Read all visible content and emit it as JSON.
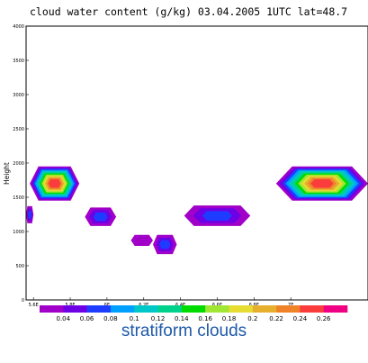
{
  "caption": "stratiform clouds",
  "chart_data": {
    "type": "contour",
    "title": "cloud water content (g/kg) 03.04.2005 1UTC lat=48.7",
    "ylabel": "Height",
    "xlabel": "",
    "xlim": [
      5.56,
      7.42
    ],
    "ylim": [
      0,
      4000
    ],
    "grid": false,
    "yticks": [
      0,
      500,
      1000,
      1500,
      2000,
      2500,
      3000,
      3500,
      4000
    ],
    "xticks": [
      {
        "v": 5.6,
        "l": "5.6E"
      },
      {
        "v": 5.8,
        "l": "5.8E"
      },
      {
        "v": 6.0,
        "l": "6E"
      },
      {
        "v": 6.2,
        "l": "6.2E"
      },
      {
        "v": 6.4,
        "l": "6.4E"
      },
      {
        "v": 6.6,
        "l": "6.6E"
      },
      {
        "v": 6.8,
        "l": "6.8E"
      },
      {
        "v": 7.0,
        "l": "7E"
      }
    ],
    "levels": [
      "0.04",
      "0.06",
      "0.08",
      "0.1",
      "0.12",
      "0.14",
      "0.16",
      "0.18",
      "0.2",
      "0.22",
      "0.24",
      "0.26"
    ],
    "colors": [
      "#a000c8",
      "#6e00e6",
      "#1e3cff",
      "#00a0ff",
      "#00c8c8",
      "#00d28c",
      "#00dc00",
      "#a0e632",
      "#e6dc32",
      "#e6af2d",
      "#f08228",
      "#fa3c3c",
      "#f00082"
    ],
    "cells": [
      {
        "x": [
          5.56,
          5.6
        ],
        "y": [
          1120,
          1370
        ],
        "max": "0.08"
      },
      {
        "x": [
          5.58,
          5.85
        ],
        "y": [
          1450,
          1950
        ],
        "max": "0.26"
      },
      {
        "x": [
          5.88,
          6.05
        ],
        "y": [
          1080,
          1350
        ],
        "max": "0.08"
      },
      {
        "x": [
          6.13,
          6.25
        ],
        "y": [
          790,
          950
        ],
        "max": "0.04"
      },
      {
        "x": [
          6.25,
          6.38
        ],
        "y": [
          670,
          950
        ],
        "max": "0.08"
      },
      {
        "x": [
          6.42,
          6.78
        ],
        "y": [
          1080,
          1380
        ],
        "max": "0.08"
      },
      {
        "x": [
          6.92,
          7.42
        ],
        "y": [
          1450,
          1950
        ],
        "max": "0.26"
      }
    ]
  }
}
